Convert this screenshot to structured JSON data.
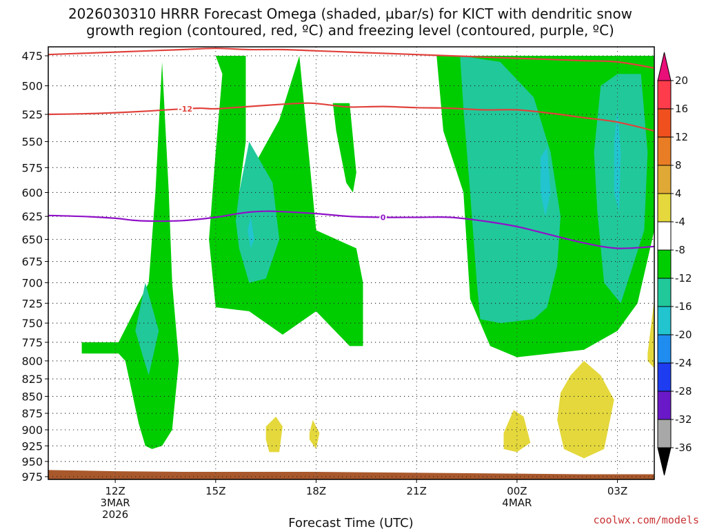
{
  "chart_data": {
    "type": "heatmap",
    "title_line1": "2026030310 HRRR Forecast Omega (shaded, µbar/s) for KICT with dendritic snow",
    "title_line2": "growth region (contoured, red, ºC) and freezing level (contoured, purple, ºC)",
    "xlabel": "Forecast Time (UTC)",
    "credit": "coolwx.com/models",
    "xlim": [
      10,
      28.1
    ],
    "ylim": [
      975,
      470
    ],
    "y_ticks": [
      475,
      500,
      525,
      550,
      575,
      600,
      625,
      650,
      675,
      700,
      725,
      750,
      775,
      800,
      825,
      850,
      875,
      900,
      925,
      950,
      975
    ],
    "x_ticks": [
      {
        "x": 12,
        "lines": [
          "12Z",
          "3MAR",
          "2026"
        ]
      },
      {
        "x": 15,
        "lines": [
          "15Z"
        ]
      },
      {
        "x": 18,
        "lines": [
          "18Z"
        ]
      },
      {
        "x": 21,
        "lines": [
          "21Z"
        ]
      },
      {
        "x": 24,
        "lines": [
          "00Z",
          "4MAR"
        ]
      },
      {
        "x": 27,
        "lines": [
          "03Z"
        ]
      }
    ],
    "colorbar": {
      "levels": [
        20,
        16,
        12,
        8,
        4,
        -4,
        -8,
        -12,
        -16,
        -20,
        -24,
        -28,
        -32,
        -36
      ],
      "colors": [
        "#ff3c4c",
        "#f0501e",
        "#e97d25",
        "#e0a835",
        "#e4d83c",
        "#ffffff",
        "#00cd00",
        "#21c89a",
        "#22c4cf",
        "#1f8cf0",
        "#1e3cf0",
        "#6a19c8",
        "#9b00c8",
        "#a8a8a8"
      ],
      "top_cap_color": "#e80f78",
      "bottom_cap_color": "#000000"
    },
    "contours": [
      {
        "name": "dendritic-top",
        "value": "",
        "color": "#e0423c",
        "points": [
          [
            10,
            474
          ],
          [
            11,
            473
          ],
          [
            12,
            472
          ],
          [
            13,
            471
          ],
          [
            14,
            470
          ],
          [
            15,
            469
          ],
          [
            16,
            470
          ],
          [
            17,
            470
          ],
          [
            18,
            471
          ],
          [
            19,
            472
          ],
          [
            20,
            473
          ],
          [
            21,
            474
          ],
          [
            22,
            475
          ],
          [
            23,
            476
          ],
          [
            24,
            477
          ],
          [
            25,
            478
          ],
          [
            26,
            479
          ],
          [
            27,
            480
          ],
          [
            28.1,
            485
          ]
        ]
      },
      {
        "name": "dendritic-bottom",
        "value": "-12",
        "label_x": 14.1,
        "color": "#e0423c",
        "points": [
          [
            10,
            525
          ],
          [
            11,
            524.5
          ],
          [
            12,
            523.5
          ],
          [
            13,
            522
          ],
          [
            13.8,
            520.5
          ],
          [
            14.5,
            519.5
          ],
          [
            15,
            520
          ],
          [
            16,
            518
          ],
          [
            17,
            516
          ],
          [
            17.8,
            515
          ],
          [
            18.5,
            517
          ],
          [
            19,
            518.5
          ],
          [
            20,
            518
          ],
          [
            21,
            519
          ],
          [
            22,
            519.5
          ],
          [
            23,
            521
          ],
          [
            24,
            521
          ],
          [
            25,
            524
          ],
          [
            26,
            528
          ],
          [
            27,
            532
          ],
          [
            28.1,
            540
          ]
        ]
      },
      {
        "name": "freezing-level",
        "value": "0",
        "label_x": 20.0,
        "color": "#9010c8",
        "points": [
          [
            10,
            624
          ],
          [
            11,
            625
          ],
          [
            12,
            627
          ],
          [
            12.5,
            629
          ],
          [
            13,
            630
          ],
          [
            14,
            629.5
          ],
          [
            15,
            626
          ],
          [
            15.5,
            623
          ],
          [
            16,
            620.5
          ],
          [
            16.5,
            619.5
          ],
          [
            17,
            620
          ],
          [
            18,
            622
          ],
          [
            19,
            625
          ],
          [
            20,
            626
          ],
          [
            21,
            626
          ],
          [
            22,
            626
          ],
          [
            23,
            630
          ],
          [
            24,
            636
          ],
          [
            25,
            645
          ],
          [
            26,
            654
          ],
          [
            27,
            660
          ],
          [
            28.1,
            658
          ]
        ]
      }
    ],
    "omega_regions": [
      {
        "level": "-8",
        "color": "#00cd00",
        "points": [
          [
            12.9,
            925
          ],
          [
            12.7,
            890
          ],
          [
            12.3,
            800
          ],
          [
            12.1,
            790
          ],
          [
            12.1,
            775
          ],
          [
            13,
            700
          ],
          [
            13.2,
            600
          ],
          [
            13.4,
            480
          ],
          [
            13.6,
            600
          ],
          [
            13.7,
            700
          ],
          [
            13.9,
            800
          ],
          [
            13.7,
            900
          ],
          [
            13.4,
            925
          ],
          [
            13.1,
            930
          ]
        ]
      },
      {
        "level": "-8",
        "color": "#00cd00",
        "points": [
          [
            11.0,
            775
          ],
          [
            12.1,
            775
          ],
          [
            12.1,
            790
          ],
          [
            11.0,
            790
          ]
        ]
      },
      {
        "level": "-8",
        "color": "#00cd00",
        "points": [
          [
            15.0,
            475
          ],
          [
            15.9,
            475
          ],
          [
            15.9,
            550
          ],
          [
            15.7,
            600
          ],
          [
            16.9,
            530
          ],
          [
            17.5,
            475
          ],
          [
            18.0,
            640
          ],
          [
            19.2,
            660
          ],
          [
            19.4,
            700
          ],
          [
            19.4,
            780
          ],
          [
            19.0,
            780
          ],
          [
            18.0,
            735
          ],
          [
            17.0,
            765
          ],
          [
            16.0,
            735
          ],
          [
            15.0,
            730
          ],
          [
            14.8,
            650
          ],
          [
            15.0,
            560
          ],
          [
            15.2,
            490
          ]
        ]
      },
      {
        "level": "-8",
        "color": "#00cd00",
        "points": [
          [
            18.5,
            515
          ],
          [
            19.0,
            515
          ],
          [
            19.2,
            580
          ],
          [
            19.1,
            600
          ],
          [
            18.9,
            590
          ],
          [
            18.6,
            540
          ]
        ]
      },
      {
        "level": "-8",
        "color": "#00cd00",
        "points": [
          [
            21.6,
            475
          ],
          [
            28.1,
            475
          ],
          [
            28.1,
            640
          ],
          [
            27.6,
            725
          ],
          [
            27.0,
            760
          ],
          [
            26.0,
            785
          ],
          [
            25.0,
            790
          ],
          [
            24.0,
            795
          ],
          [
            23.2,
            780
          ],
          [
            22.6,
            720
          ],
          [
            22.4,
            600
          ],
          [
            21.8,
            540
          ]
        ]
      },
      {
        "level": "-8",
        "color": "#00cd00",
        "points": [
          [
            28.0,
            775
          ],
          [
            28.1,
            775
          ],
          [
            28.1,
            780
          ],
          [
            28.0,
            780
          ]
        ]
      },
      {
        "level": "-12",
        "color": "#21c89a",
        "points": [
          [
            15.7,
            600
          ],
          [
            16.0,
            550
          ],
          [
            16.7,
            590
          ],
          [
            16.9,
            650
          ],
          [
            16.5,
            695
          ],
          [
            16.0,
            700
          ],
          [
            15.7,
            660
          ],
          [
            15.6,
            630
          ]
        ]
      },
      {
        "level": "-12",
        "color": "#21c89a",
        "points": [
          [
            22.3,
            475
          ],
          [
            23.5,
            480
          ],
          [
            24.5,
            510
          ],
          [
            25.0,
            560
          ],
          [
            25.3,
            625
          ],
          [
            25.2,
            680
          ],
          [
            24.9,
            730
          ],
          [
            24.5,
            745
          ],
          [
            23.5,
            750
          ],
          [
            22.9,
            745
          ],
          [
            22.8,
            700
          ],
          [
            22.6,
            600
          ],
          [
            22.4,
            520
          ]
        ]
      },
      {
        "level": "-12",
        "color": "#21c89a",
        "points": [
          [
            26.5,
            500
          ],
          [
            27.0,
            490
          ],
          [
            27.7,
            490
          ],
          [
            27.9,
            560
          ],
          [
            27.8,
            640
          ],
          [
            27.1,
            725
          ],
          [
            26.6,
            700
          ],
          [
            26.4,
            620
          ],
          [
            26.3,
            560
          ]
        ]
      },
      {
        "level": "-12",
        "color": "#21c89a",
        "points": [
          [
            12.6,
            760
          ],
          [
            12.9,
            700
          ],
          [
            13.3,
            760
          ],
          [
            13.0,
            820
          ],
          [
            12.8,
            790
          ]
        ]
      },
      {
        "level": "-16",
        "color": "#22c4cf",
        "points": [
          [
            24.7,
            565
          ],
          [
            24.9,
            555
          ],
          [
            25.0,
            600
          ],
          [
            24.85,
            625
          ],
          [
            24.7,
            600
          ]
        ]
      },
      {
        "level": "-16",
        "color": "#22c4cf",
        "points": [
          [
            26.9,
            550
          ],
          [
            27.0,
            520
          ],
          [
            27.1,
            560
          ],
          [
            27.05,
            620
          ],
          [
            26.9,
            600
          ]
        ]
      },
      {
        "level": "-16",
        "color": "#22c4cf",
        "points": [
          [
            15.95,
            640
          ],
          [
            16.05,
            625
          ],
          [
            16.15,
            650
          ],
          [
            16.05,
            660
          ]
        ]
      },
      {
        "level": "+4",
        "color": "#e4d83c",
        "points": [
          [
            16.5,
            895
          ],
          [
            16.8,
            880
          ],
          [
            17.0,
            895
          ],
          [
            16.9,
            935
          ],
          [
            16.6,
            935
          ],
          [
            16.5,
            915
          ]
        ]
      },
      {
        "level": "+4",
        "color": "#e4d83c",
        "points": [
          [
            17.8,
            905
          ],
          [
            17.9,
            885
          ],
          [
            18.1,
            905
          ],
          [
            18.0,
            930
          ],
          [
            17.8,
            915
          ]
        ]
      },
      {
        "level": "+4",
        "color": "#e4d83c",
        "points": [
          [
            23.6,
            905
          ],
          [
            23.9,
            870
          ],
          [
            24.2,
            880
          ],
          [
            24.4,
            920
          ],
          [
            24.0,
            935
          ],
          [
            23.6,
            930
          ]
        ]
      },
      {
        "level": "+4",
        "color": "#e4d83c",
        "points": [
          [
            25.3,
            845
          ],
          [
            25.6,
            820
          ],
          [
            26.0,
            800
          ],
          [
            26.5,
            820
          ],
          [
            26.9,
            855
          ],
          [
            26.6,
            930
          ],
          [
            26.0,
            945
          ],
          [
            25.4,
            930
          ],
          [
            25.2,
            885
          ]
        ]
      },
      {
        "level": "+4",
        "color": "#e4d83c",
        "points": [
          [
            27.9,
            790
          ],
          [
            28.1,
            720
          ],
          [
            28.1,
            810
          ],
          [
            27.9,
            800
          ]
        ]
      }
    ],
    "terrain": {
      "color": "#a9582c",
      "top_points": [
        [
          10,
          964
        ],
        [
          12,
          966
        ],
        [
          14,
          967
        ],
        [
          16,
          967
        ],
        [
          18,
          967
        ],
        [
          20,
          968
        ],
        [
          22,
          969
        ],
        [
          24,
          970
        ],
        [
          26,
          971
        ],
        [
          28.1,
          971
        ]
      ]
    }
  }
}
